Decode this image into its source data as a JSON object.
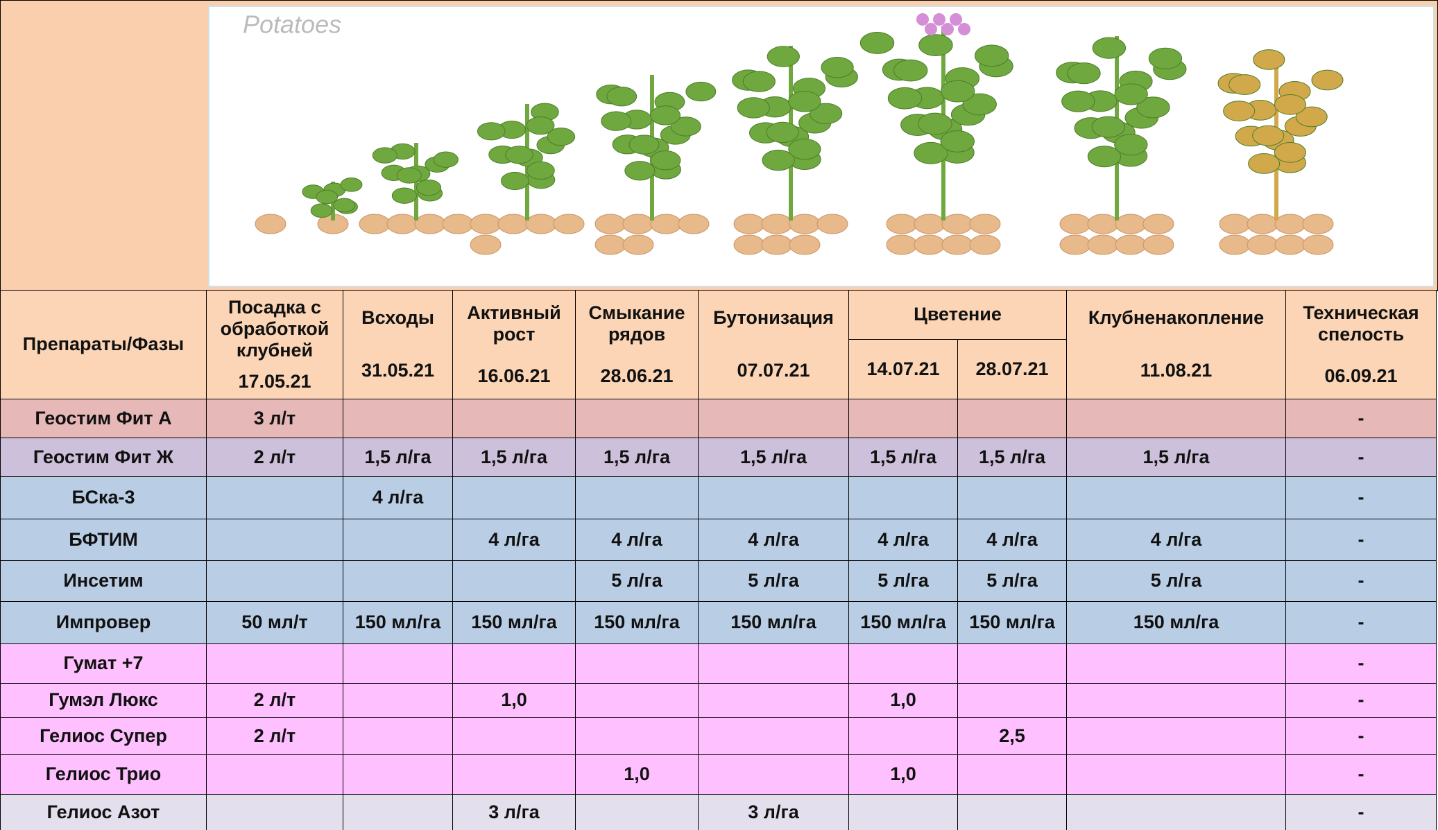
{
  "illustration": {
    "caption": "Potatoes"
  },
  "header": {
    "corner": "Препараты/Фазы",
    "phases": [
      {
        "name": "Посадка с обработкой клубней",
        "date": "17.05.21"
      },
      {
        "name": "Всходы",
        "date": "31.05.21"
      },
      {
        "name": "Активный рост",
        "date": "16.06.21"
      },
      {
        "name": "Смыкание рядов",
        "date": "28.06.21"
      },
      {
        "name": "Бутонизация",
        "date": "07.07.21"
      },
      {
        "name": "Цветение",
        "dates": [
          "14.07.21",
          "28.07.21"
        ]
      },
      {
        "name": "Клубненакопление",
        "date": "11.08.21"
      },
      {
        "name": "Техническая спелость",
        "date": "06.09.21"
      }
    ]
  },
  "table": {
    "rows": [
      {
        "name": "Геостим Фит А",
        "cells": [
          "3 л/т",
          null,
          null,
          null,
          null,
          null,
          null,
          null,
          "-"
        ]
      },
      {
        "name": "Геостим Фит Ж",
        "cells": [
          "2 л/т",
          "1,5 л/га",
          "1,5 л/га",
          "1,5 л/га",
          "1,5 л/га",
          "1,5 л/га",
          "1,5 л/га",
          "1,5 л/га",
          "-"
        ]
      },
      {
        "name": "БСка-3",
        "cells": [
          null,
          "4 л/га",
          null,
          null,
          null,
          null,
          null,
          null,
          "-"
        ]
      },
      {
        "name": "БФТИМ",
        "cells": [
          null,
          null,
          "4 л/га",
          "4 л/га",
          "4 л/га",
          "4 л/га",
          "4 л/га",
          "4 л/га",
          "-"
        ]
      },
      {
        "name": "Инсетим",
        "cells": [
          null,
          null,
          null,
          "5 л/га",
          "5 л/га",
          "5 л/га",
          "5 л/га",
          "5 л/га",
          "-"
        ]
      },
      {
        "name": "Импровер",
        "cells": [
          "50 мл/т",
          "150 мл/га",
          "150 мл/га",
          "150 мл/га",
          "150 мл/га",
          "150 мл/га",
          "150 мл/га",
          "150 мл/га",
          "-"
        ]
      },
      {
        "name": "Гумат +7",
        "cells": [
          null,
          null,
          null,
          null,
          null,
          null,
          null,
          null,
          "-"
        ]
      },
      {
        "name": "Гумэл Люкс",
        "cells": [
          "2 л/т",
          null,
          "1,0",
          null,
          null,
          "1,0",
          null,
          null,
          "-"
        ]
      },
      {
        "name": "Гелиос Супер",
        "cells": [
          "2 л/т",
          null,
          null,
          null,
          null,
          null,
          "2,5",
          null,
          "-"
        ]
      },
      {
        "name": "Гелиос Трио",
        "cells": [
          null,
          null,
          null,
          "1,0",
          null,
          "1,0",
          null,
          null,
          "-"
        ]
      },
      {
        "name": "Гелиос Азот",
        "cells": [
          null,
          null,
          "3 л/га",
          null,
          "3 л/га",
          null,
          null,
          null,
          "-"
        ]
      }
    ]
  }
}
